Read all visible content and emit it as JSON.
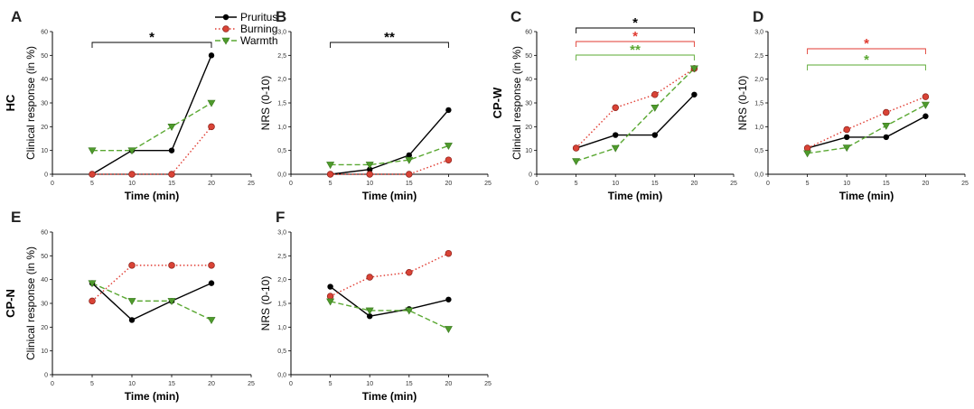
{
  "legend": [
    {
      "name": "Pruritus",
      "color": "#000000",
      "dash": "solid",
      "marker": "circle"
    },
    {
      "name": "Burning",
      "color": "#e03a30",
      "dash": "dotted",
      "marker": "circle-red"
    },
    {
      "name": "Warmth",
      "color": "#5aa832",
      "dash": "dashed",
      "marker": "triangle"
    }
  ],
  "chart_data": [
    {
      "panel": "A",
      "row_label": "HC",
      "type": "line",
      "xlabel": "Time (min)",
      "ylabel": "Clinical response (in %)",
      "xlim": [
        0,
        25
      ],
      "ylim": [
        0,
        60
      ],
      "xticks": [
        "0",
        "5",
        "10",
        "15",
        "20",
        "25"
      ],
      "yticks": [
        "0",
        "10",
        "20",
        "30",
        "40",
        "50",
        "60"
      ],
      "x": [
        5,
        10,
        15,
        20
      ],
      "series": [
        {
          "name": "Pruritus",
          "values": [
            0,
            10,
            10,
            50
          ]
        },
        {
          "name": "Burning",
          "values": [
            0,
            0,
            0,
            20
          ]
        },
        {
          "name": "Warmth",
          "values": [
            10,
            10,
            20,
            30
          ]
        }
      ],
      "significance": [
        {
          "label": "*",
          "from": 5,
          "to": 20,
          "color": "#000000"
        }
      ]
    },
    {
      "panel": "B",
      "type": "line",
      "xlabel": "Time (min)",
      "ylabel": "NRS (0-10)",
      "xlim": [
        0,
        25
      ],
      "ylim": [
        0,
        3
      ],
      "xticks": [
        "0",
        "5",
        "10",
        "15",
        "20",
        "25"
      ],
      "yticks": [
        "0,0",
        "0,5",
        "1,0",
        "1,5",
        "2,0",
        "2,5",
        "3,0"
      ],
      "x": [
        5,
        10,
        15,
        20
      ],
      "series": [
        {
          "name": "Pruritus",
          "values": [
            0,
            0.1,
            0.4,
            1.35
          ]
        },
        {
          "name": "Burning",
          "values": [
            0,
            0,
            0,
            0.3
          ]
        },
        {
          "name": "Warmth",
          "values": [
            0.2,
            0.2,
            0.3,
            0.6
          ]
        }
      ],
      "significance": [
        {
          "label": "**",
          "from": 5,
          "to": 20,
          "color": "#000000"
        }
      ]
    },
    {
      "panel": "C",
      "row_label": "CP-W",
      "type": "line",
      "xlabel": "Time (min)",
      "ylabel": "Clinical response (in %)",
      "xlim": [
        0,
        25
      ],
      "ylim": [
        0,
        60
      ],
      "xticks": [
        "0",
        "5",
        "10",
        "15",
        "20",
        "25"
      ],
      "yticks": [
        "0",
        "10",
        "20",
        "30",
        "40",
        "50",
        "60"
      ],
      "x": [
        5,
        10,
        15,
        20
      ],
      "series": [
        {
          "name": "Pruritus",
          "values": [
            11,
            16.5,
            16.5,
            33.5
          ]
        },
        {
          "name": "Burning",
          "values": [
            11,
            28,
            33.5,
            44.5
          ]
        },
        {
          "name": "Warmth",
          "values": [
            5.5,
            11,
            28,
            44.5
          ]
        }
      ],
      "significance": [
        {
          "label": "*",
          "from": 5,
          "to": 20,
          "color": "#000000"
        },
        {
          "label": "*",
          "from": 5,
          "to": 20,
          "color": "#e03a30"
        },
        {
          "label": "**",
          "from": 5,
          "to": 20,
          "color": "#5aa832"
        }
      ]
    },
    {
      "panel": "D",
      "type": "line",
      "xlabel": "Time (min)",
      "ylabel": "NRS (0-10)",
      "xlim": [
        0,
        25
      ],
      "ylim": [
        0,
        3
      ],
      "xticks": [
        "0",
        "5",
        "10",
        "15",
        "20",
        "25"
      ],
      "yticks": [
        "0,0",
        "0,5",
        "1,0",
        "1,5",
        "2,0",
        "2,5",
        "3,0"
      ],
      "x": [
        5,
        10,
        15,
        20
      ],
      "series": [
        {
          "name": "Pruritus",
          "values": [
            0.55,
            0.78,
            0.78,
            1.22
          ]
        },
        {
          "name": "Burning",
          "values": [
            0.55,
            0.94,
            1.3,
            1.63
          ]
        },
        {
          "name": "Warmth",
          "values": [
            0.44,
            0.56,
            1.02,
            1.46
          ]
        }
      ],
      "significance": [
        {
          "label": "*",
          "from": 5,
          "to": 20,
          "color": "#e03a30"
        },
        {
          "label": "*",
          "from": 5,
          "to": 20,
          "color": "#5aa832"
        }
      ]
    },
    {
      "panel": "E",
      "row_label": "CP-N",
      "type": "line",
      "xlabel": "Time (min)",
      "ylabel": "Clinical response (in %)",
      "xlim": [
        0,
        25
      ],
      "ylim": [
        0,
        60
      ],
      "xticks": [
        "0",
        "5",
        "10",
        "15",
        "20",
        "25"
      ],
      "yticks": [
        "0",
        "10",
        "20",
        "30",
        "40",
        "50",
        "60"
      ],
      "x": [
        5,
        10,
        15,
        20
      ],
      "series": [
        {
          "name": "Pruritus",
          "values": [
            38.5,
            23,
            31,
            38.5
          ]
        },
        {
          "name": "Burning",
          "values": [
            31,
            46,
            46,
            46
          ]
        },
        {
          "name": "Warmth",
          "values": [
            38.5,
            31,
            31,
            23
          ]
        }
      ],
      "significance": []
    },
    {
      "panel": "F",
      "type": "line",
      "xlabel": "Time (min)",
      "ylabel": "NRS (0-10)",
      "xlim": [
        0,
        25
      ],
      "ylim": [
        0,
        3
      ],
      "xticks": [
        "0",
        "5",
        "10",
        "15",
        "20",
        "25"
      ],
      "yticks": [
        "0,0",
        "0,5",
        "1,0",
        "1,5",
        "2,0",
        "2,5",
        "3,0"
      ],
      "x": [
        5,
        10,
        15,
        20
      ],
      "series": [
        {
          "name": "Pruritus",
          "values": [
            1.85,
            1.23,
            1.38,
            1.58
          ]
        },
        {
          "name": "Burning",
          "values": [
            1.65,
            2.05,
            2.15,
            2.55
          ]
        },
        {
          "name": "Warmth",
          "values": [
            1.54,
            1.35,
            1.35,
            0.96
          ]
        }
      ],
      "significance": []
    }
  ]
}
